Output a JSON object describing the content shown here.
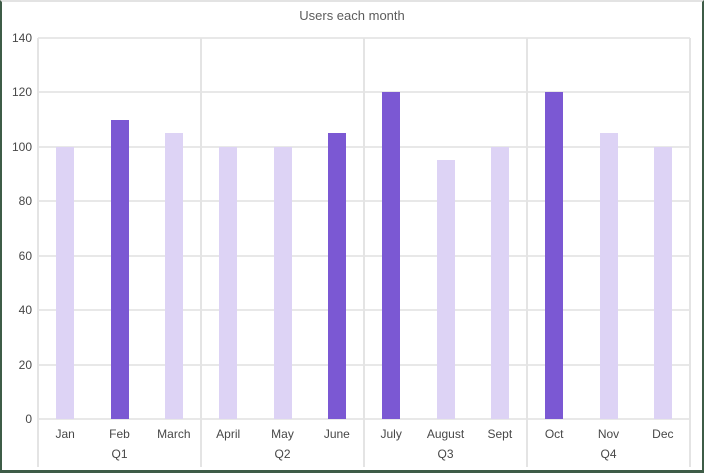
{
  "chart_data": {
    "type": "bar",
    "title": "Users each month",
    "categories": [
      "Jan",
      "Feb",
      "March",
      "April",
      "May",
      "June",
      "July",
      "August",
      "Sept",
      "Oct",
      "Nov",
      "Dec"
    ],
    "values": [
      100,
      110,
      105,
      100,
      100,
      105,
      120,
      95,
      100,
      120,
      105,
      100
    ],
    "highlighted": [
      false,
      true,
      false,
      false,
      false,
      true,
      true,
      false,
      false,
      true,
      false,
      false
    ],
    "group_labels": [
      "Q1",
      "Q2",
      "Q3",
      "Q4"
    ],
    "group_size": 3,
    "xlabel": "",
    "ylabel": "",
    "ylim": [
      0,
      140
    ],
    "yticks": [
      0,
      20,
      40,
      60,
      80,
      100,
      120,
      140
    ],
    "grid": true,
    "legend_position": "none",
    "colors": {
      "bar_default": "#DDD3F5",
      "bar_highlight": "#7B58D3",
      "grid_line": "#E8E8E8",
      "divider_line": "#E4E4E4",
      "axis_label": "#474747",
      "title": "#5C5C5C",
      "frame_border": "#3E5C47",
      "frame_top_border": "#E3E3E3",
      "background": "#FFFFFF"
    }
  }
}
